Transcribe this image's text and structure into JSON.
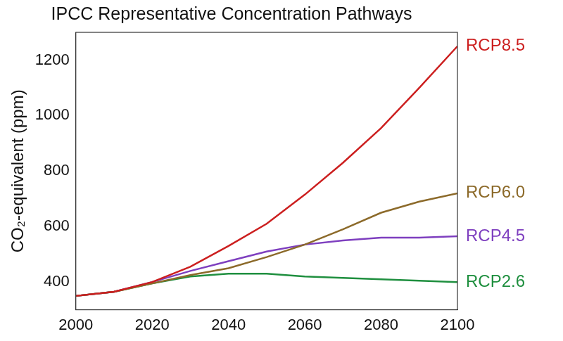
{
  "chart_data": {
    "type": "line",
    "title": "IPCC Representative Concentration Pathways",
    "y_label": "CO₂-equivalent (ppm)",
    "x": [
      2000,
      2010,
      2020,
      2030,
      2040,
      2050,
      2060,
      2070,
      2080,
      2090,
      2100
    ],
    "series": [
      {
        "name": "RCP8.5",
        "color": "#cc1f1f",
        "values": [
          350,
          365,
          400,
          455,
          530,
          610,
          715,
          830,
          955,
          1100,
          1250
        ]
      },
      {
        "name": "RCP6.0",
        "color": "#8c6a2a",
        "values": [
          350,
          365,
          395,
          425,
          450,
          490,
          535,
          590,
          650,
          690,
          720
        ]
      },
      {
        "name": "RCP4.5",
        "color": "#7e3fbf",
        "values": [
          350,
          365,
          400,
          440,
          475,
          510,
          535,
          550,
          560,
          560,
          565
        ]
      },
      {
        "name": "RCP2.6",
        "color": "#1f8f3f",
        "values": [
          350,
          365,
          395,
          420,
          430,
          430,
          420,
          415,
          410,
          405,
          400
        ]
      }
    ],
    "xlim": [
      2000,
      2100
    ],
    "xticks": [
      2000,
      2020,
      2040,
      2060,
      2080,
      2100
    ],
    "ylim": [
      300,
      1300
    ],
    "yticks": [
      400,
      600,
      800,
      1000,
      1200
    ],
    "grid": false
  }
}
